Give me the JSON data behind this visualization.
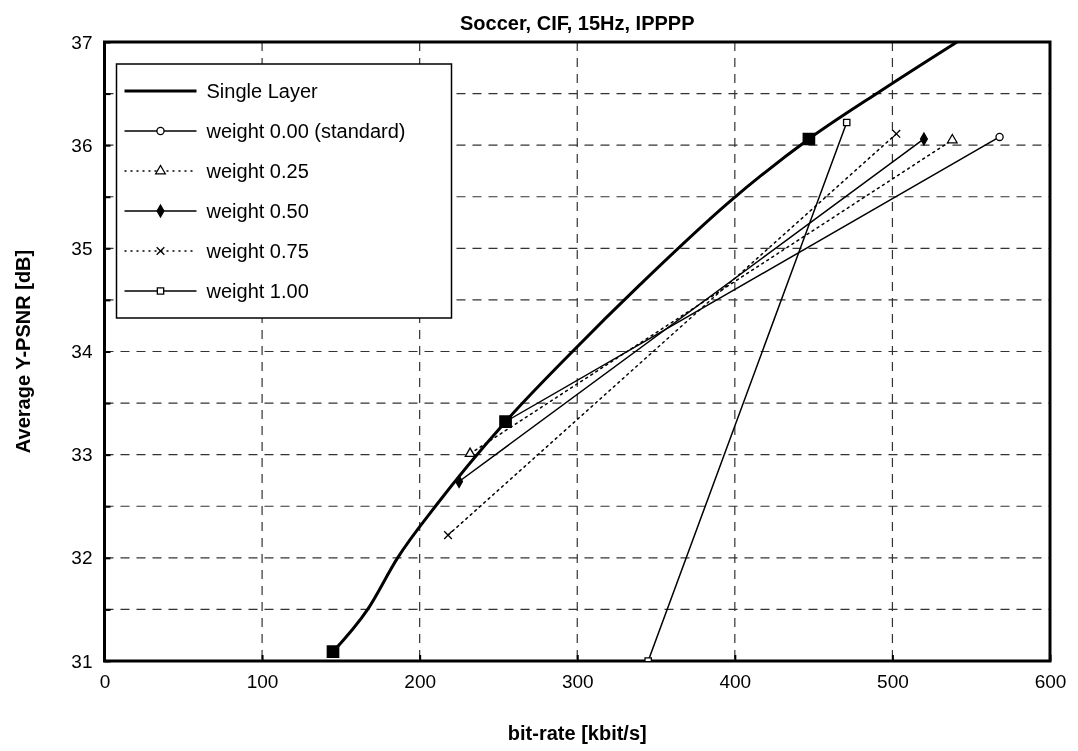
{
  "chart_data": {
    "type": "line",
    "title": "Soccer, CIF, 15Hz, IPPPP",
    "xlabel": "bit-rate [kbit/s]",
    "ylabel": "Average Y-PSNR [dB]",
    "xlim": [
      0,
      600
    ],
    "xticks": [
      0,
      100,
      200,
      300,
      400,
      500,
      600
    ],
    "ylim": [
      31,
      37
    ],
    "yticks": [
      31,
      {
        "value": 31.5,
        "label": null
      },
      32,
      {
        "value": 32.5,
        "label": null
      },
      33,
      {
        "value": 33.5,
        "label": null
      },
      34,
      {
        "value": 34.5,
        "label": null
      },
      35,
      {
        "value": 35.5,
        "label": null
      },
      36,
      {
        "value": 36.5,
        "label": null
      },
      37
    ],
    "grid": true,
    "legend": "top left",
    "series": [
      {
        "name": "Single Layer",
        "color": "#000000",
        "line_style": "solid",
        "marker": "none",
        "x": [
          145,
          167,
          186,
          210,
          254.5,
          297,
          340,
          398,
          447,
          493,
          541
        ],
        "values": [
          31.09,
          31.5,
          32.0,
          32.5,
          33.32,
          34.0,
          34.65,
          35.47,
          36.06,
          36.53,
          37.0
        ]
      },
      {
        "type": "scatter",
        "color": "#000000",
        "marker": "square",
        "x": [
          145,
          254.5,
          447
        ],
        "values": [
          31.09,
          33.32,
          36.06
        ]
      },
      {
        "name": "weight 0.00 (standard)",
        "color": "#000000",
        "line_style": "solid",
        "marker": "circle",
        "x": [
          254.5,
          568
        ],
        "values": [
          33.32,
          36.08
        ]
      },
      {
        "name": "weight 0.25",
        "color": "#000000",
        "line_style": "dotted",
        "marker": "triangle",
        "x": [
          232,
          538
        ],
        "values": [
          33.01,
          36.05
        ]
      },
      {
        "name": "weight 0.50",
        "color": "#000000",
        "line_style": "solid",
        "marker": "diamond",
        "x": [
          225,
          520
        ],
        "values": [
          32.74,
          36.06
        ]
      },
      {
        "name": "weight 0.75",
        "color": "#000000",
        "line_style": "dotted",
        "marker": "cross",
        "x": [
          218,
          502.5
        ],
        "values": [
          32.22,
          36.11
        ]
      },
      {
        "name": "weight 1.00",
        "color": "#000000",
        "line_style": "solid",
        "marker": "square",
        "x": [
          345,
          471
        ],
        "values": [
          31.0,
          36.22
        ]
      }
    ]
  }
}
